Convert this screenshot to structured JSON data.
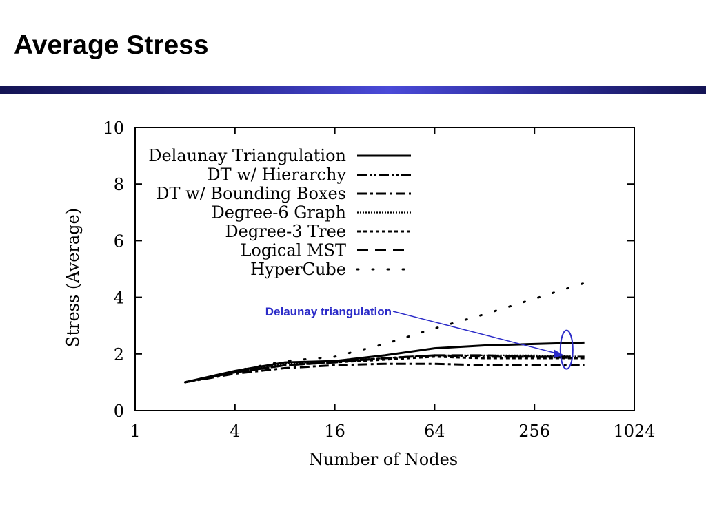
{
  "slide": {
    "title": "Average Stress"
  },
  "colors": {
    "title_bar": "#2e2e9e",
    "annotation": "#2b2bc8",
    "series": "#000000"
  },
  "chart_data": {
    "type": "line",
    "xscale": "log2",
    "xlabel": "Number of Nodes",
    "ylabel": "Stress (Average)",
    "xlim": [
      1,
      1024
    ],
    "ylim": [
      0,
      10
    ],
    "xticks": [
      1,
      4,
      16,
      64,
      256,
      1024
    ],
    "yticks": [
      0,
      2,
      4,
      6,
      8,
      10
    ],
    "grid": false,
    "legend_position": "top-left",
    "x": [
      2,
      4,
      8,
      16,
      32,
      64,
      128,
      256,
      512
    ],
    "series": [
      {
        "name": "Delaunay Triangulation",
        "values": [
          1.0,
          1.4,
          1.7,
          1.75,
          1.95,
          2.2,
          2.3,
          2.35,
          2.4
        ]
      },
      {
        "name": "DT w/ Hierarchy",
        "values": [
          1.0,
          1.35,
          1.6,
          1.72,
          1.85,
          1.95,
          1.9,
          1.9,
          1.85
        ]
      },
      {
        "name": "DT w/ Bounding Boxes",
        "values": [
          1.0,
          1.3,
          1.5,
          1.6,
          1.65,
          1.65,
          1.6,
          1.6,
          1.6
        ]
      },
      {
        "name": "Degree-6 Graph",
        "values": [
          1.0,
          1.35,
          1.65,
          1.75,
          1.85,
          1.95,
          1.95,
          1.95,
          1.9
        ]
      },
      {
        "name": "Degree-3 Tree",
        "values": [
          1.0,
          1.35,
          1.6,
          1.7,
          1.8,
          1.9,
          1.85,
          1.85,
          1.85
        ]
      },
      {
        "name": "Logical MST",
        "values": [
          1.0,
          1.35,
          1.6,
          1.7,
          1.85,
          1.95,
          1.95,
          1.9,
          1.9
        ]
      },
      {
        "name": "HyperCube",
        "values": [
          1.0,
          1.4,
          1.75,
          1.9,
          2.35,
          2.9,
          3.4,
          3.95,
          4.5
        ]
      }
    ],
    "annotations": [
      {
        "text": "Delaunay triangulation",
        "target_series": "Delaunay Triangulation"
      }
    ]
  }
}
